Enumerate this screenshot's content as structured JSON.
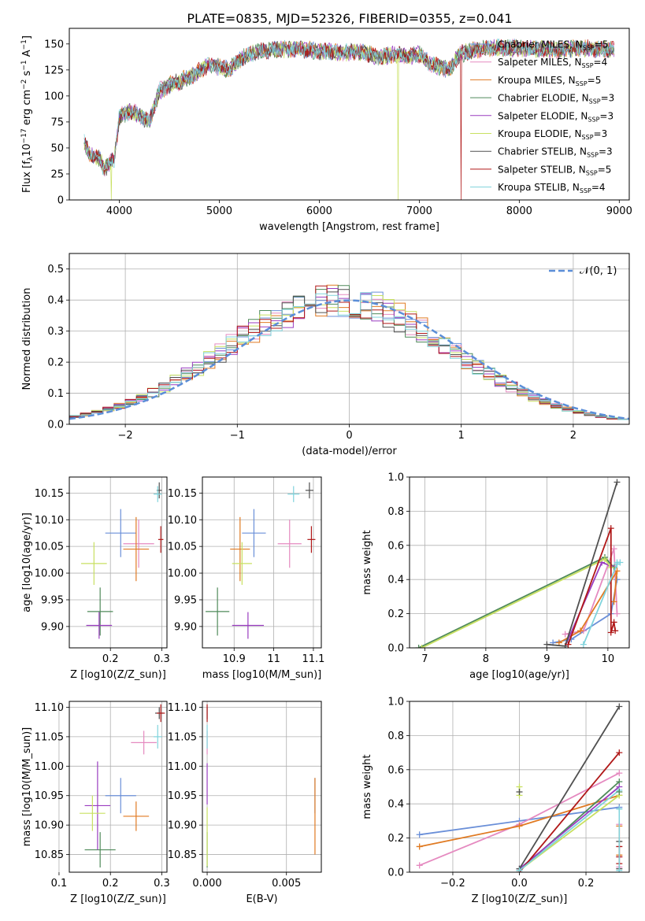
{
  "figure": {
    "title": "PLATE=0835, MJD=52326, FIBERID=0355, z=0.041"
  },
  "series": [
    {
      "name": "Chabrier MILES, N_SSP=5",
      "color": "#6a8fd8"
    },
    {
      "name": "Salpeter MILES, N_SSP=4",
      "color": "#e58ac0"
    },
    {
      "name": "Kroupa MILES, N_SSP=5",
      "color": "#e07a22"
    },
    {
      "name": "Chabrier ELODIE, N_SSP=3",
      "color": "#4f8a5a"
    },
    {
      "name": "Salpeter ELODIE, N_SSP=3",
      "color": "#9a3dc0"
    },
    {
      "name": "Kroupa ELODIE, N_SSP=3",
      "color": "#c8e060"
    },
    {
      "name": "Chabrier STELIB, N_SSP=3",
      "color": "#505050"
    },
    {
      "name": "Salpeter STELIB, N_SSP=5",
      "color": "#b01818"
    },
    {
      "name": "Kroupa STELIB, N_SSP=4",
      "color": "#7fd3dc"
    }
  ],
  "chart_data": [
    {
      "id": "spectrum",
      "type": "line",
      "xlabel": "wavelength [Angstrom, rest frame]",
      "ylabel": "Flux [f_λ 10^-17 erg cm^-2 s^-1 A^-1]",
      "xlim": [
        3500,
        9100
      ],
      "ylim": [
        0,
        165
      ],
      "xticks": [
        4000,
        5000,
        6000,
        7000,
        8000,
        9000
      ],
      "yticks": [
        0,
        25,
        50,
        75,
        100,
        125,
        150
      ],
      "legend": "top-right",
      "grid": false,
      "spectrum_envelope": {
        "x": [
          3650,
          3700,
          3800,
          3850,
          3900,
          3950,
          4000,
          4100,
          4200,
          4300,
          4400,
          4500,
          4700,
          4900,
          5000,
          5100,
          5200,
          5300,
          5400,
          5600,
          5800,
          6000,
          6200,
          6400,
          6600,
          6800,
          6900,
          7000,
          7100,
          7200,
          7300,
          7400,
          7600,
          7800,
          8000,
          8200,
          8400,
          8600,
          8800,
          8950
        ],
        "y": [
          55,
          45,
          40,
          30,
          35,
          40,
          80,
          85,
          82,
          75,
          105,
          110,
          118,
          130,
          128,
          125,
          135,
          140,
          143,
          145,
          145,
          143,
          142,
          142,
          138,
          140,
          138,
          140,
          132,
          128,
          124,
          140,
          145,
          146,
          146,
          145,
          144,
          146,
          145,
          144
        ]
      },
      "drops": [
        {
          "series": "Kroupa ELODIE, N_SSP=3",
          "x": 3920
        },
        {
          "series": "Kroupa ELODIE, N_SSP=3",
          "x": 6790
        },
        {
          "series": "Salpeter STELIB, N_SSP=5",
          "x": 7420
        }
      ]
    },
    {
      "id": "residuals",
      "type": "histogram",
      "xlabel": "(data-model)/error",
      "ylabel": "Normed distribution",
      "xlim": [
        -2.5,
        2.5
      ],
      "ylim": [
        0,
        0.55
      ],
      "xticks": [
        -2,
        -1,
        0,
        1,
        2
      ],
      "yticks": [
        0.0,
        0.1,
        0.2,
        0.3,
        0.4,
        0.5
      ],
      "grid": true,
      "legend": "top-right",
      "bin_width": 0.1,
      "reference": {
        "name": "N(0,1)",
        "type": "gaussian",
        "mu": 0,
        "sigma": 1,
        "color": "#5b8ed8"
      }
    },
    {
      "id": "age_vs_Z",
      "type": "scatter",
      "xlabel": "Z [log10(Z/Z_sun)]",
      "ylabel": "age [log10(age/yr)]",
      "xlim": [
        0.12,
        0.31
      ],
      "ylim": [
        9.86,
        10.18
      ],
      "xticks": [
        0.2,
        0.3
      ],
      "yticks": [
        9.9,
        9.95,
        10.0,
        10.05,
        10.1,
        10.15
      ],
      "grid": true,
      "points": [
        {
          "series": 0,
          "x": 0.22,
          "y": 10.075,
          "xerr": 0.03,
          "yerr": 0.045
        },
        {
          "series": 1,
          "x": 0.255,
          "y": 10.055,
          "xerr": 0.03,
          "yerr": 0.045
        },
        {
          "series": 2,
          "x": 0.25,
          "y": 10.045,
          "xerr": 0.025,
          "yerr": 0.06
        },
        {
          "series": 3,
          "x": 0.18,
          "y": 9.928,
          "xerr": 0.025,
          "yerr": 0.045
        },
        {
          "series": 4,
          "x": 0.178,
          "y": 9.902,
          "xerr": 0.025,
          "yerr": 0.025
        },
        {
          "series": 5,
          "x": 0.168,
          "y": 10.018,
          "xerr": 0.025,
          "yerr": 0.04
        },
        {
          "series": 6,
          "x": 0.295,
          "y": 10.155,
          "xerr": 0.005,
          "yerr": 0.015
        },
        {
          "series": 7,
          "x": 0.298,
          "y": 10.063,
          "xerr": 0.005,
          "yerr": 0.025
        },
        {
          "series": 8,
          "x": 0.292,
          "y": 10.148,
          "xerr": 0.008,
          "yerr": 0.015
        }
      ]
    },
    {
      "id": "age_vs_mass",
      "type": "scatter",
      "xlabel": "mass [log10(M/M_sun)]",
      "xlim": [
        10.82,
        11.12
      ],
      "ylim": [
        9.86,
        10.18
      ],
      "xticks": [
        10.9,
        11.0,
        11.1
      ],
      "yticks": [
        9.9,
        9.95,
        10.0,
        10.05,
        10.1,
        10.15
      ],
      "grid": true,
      "points": [
        {
          "series": 0,
          "x": 10.95,
          "y": 10.075,
          "xerr": 0.03,
          "yerr": 0.045
        },
        {
          "series": 1,
          "x": 11.04,
          "y": 10.055,
          "xerr": 0.03,
          "yerr": 0.045
        },
        {
          "series": 2,
          "x": 10.915,
          "y": 10.045,
          "xerr": 0.025,
          "yerr": 0.06
        },
        {
          "series": 3,
          "x": 10.858,
          "y": 9.928,
          "xerr": 0.03,
          "yerr": 0.045
        },
        {
          "series": 4,
          "x": 10.935,
          "y": 9.902,
          "xerr": 0.04,
          "yerr": 0.025
        },
        {
          "series": 5,
          "x": 10.92,
          "y": 10.018,
          "xerr": 0.025,
          "yerr": 0.04
        },
        {
          "series": 6,
          "x": 11.09,
          "y": 10.155,
          "xerr": 0.01,
          "yerr": 0.015
        },
        {
          "series": 7,
          "x": 11.095,
          "y": 10.063,
          "xerr": 0.01,
          "yerr": 0.025
        },
        {
          "series": 8,
          "x": 11.05,
          "y": 10.148,
          "xerr": 0.015,
          "yerr": 0.015
        }
      ]
    },
    {
      "id": "weight_vs_age",
      "type": "line",
      "xlabel": "age [log10(age/yr)]",
      "ylabel": "mass weight",
      "xlim": [
        6.75,
        10.35
      ],
      "ylim": [
        0,
        1.0
      ],
      "xticks": [
        7,
        8,
        9,
        10
      ],
      "yticks": [
        0.0,
        0.2,
        0.4,
        0.6,
        0.8,
        1.0
      ],
      "grid": true,
      "lines": [
        {
          "series": 0,
          "x": [
            9.1,
            9.4,
            10.05,
            10.15
          ],
          "y": [
            0.03,
            0.05,
            0.2,
            0.4
          ]
        },
        {
          "series": 1,
          "x": [
            9.3,
            9.6,
            10.1,
            10.15
          ],
          "y": [
            0.08,
            0.1,
            0.58,
            0.2
          ]
        },
        {
          "series": 2,
          "x": [
            9.2,
            9.55,
            10.15,
            10.1
          ],
          "y": [
            0.03,
            0.1,
            0.45,
            0.27
          ]
        },
        {
          "series": 3,
          "x": [
            6.9,
            9.95,
            10.1
          ],
          "y": [
            0.0,
            0.53,
            0.47
          ]
        },
        {
          "series": 4,
          "x": [
            9.3,
            9.9,
            10.05
          ],
          "y": [
            0.01,
            0.5,
            0.48
          ]
        },
        {
          "series": 5,
          "x": [
            6.95,
            9.95,
            10.05
          ],
          "y": [
            0.0,
            0.52,
            0.47
          ]
        },
        {
          "series": 6,
          "x": [
            9.0,
            9.3,
            10.15
          ],
          "y": [
            0.02,
            0.01,
            0.97
          ]
        },
        {
          "series": 7,
          "x": [
            9.35,
            10.05,
            10.05,
            10.1,
            10.12
          ],
          "y": [
            0.02,
            0.7,
            0.09,
            0.15,
            0.1
          ]
        },
        {
          "series": 8,
          "x": [
            9.6,
            10.15,
            10.15,
            10.2
          ],
          "y": [
            0.02,
            0.49,
            0.5,
            0.5
          ]
        }
      ]
    },
    {
      "id": "mass_vs_Z",
      "type": "scatter",
      "xlabel": "Z [log10(Z/Z_sun)]",
      "ylabel": "mass [log10(M/M_sun)]",
      "xlim": [
        0.12,
        0.31
      ],
      "ylim": [
        10.82,
        11.11
      ],
      "xticks": [
        0.1,
        0.2,
        0.3
      ],
      "yticks": [
        10.85,
        10.9,
        10.95,
        11.0,
        11.05,
        11.1
      ],
      "grid": true,
      "points": [
        {
          "series": 0,
          "x": 0.22,
          "y": 10.95,
          "xerr": 0.03,
          "yerr": 0.03
        },
        {
          "series": 1,
          "x": 0.265,
          "y": 11.04,
          "xerr": 0.025,
          "yerr": 0.02
        },
        {
          "series": 2,
          "x": 0.25,
          "y": 10.915,
          "xerr": 0.025,
          "yerr": 0.025
        },
        {
          "series": 3,
          "x": 0.18,
          "y": 10.858,
          "xerr": 0.03,
          "yerr": 0.03
        },
        {
          "series": 4,
          "x": 0.175,
          "y": 10.933,
          "xerr": 0.025,
          "yerr": 0.075
        },
        {
          "series": 5,
          "x": 0.165,
          "y": 10.92,
          "xerr": 0.025,
          "yerr": 0.03
        },
        {
          "series": 6,
          "x": 0.295,
          "y": 11.09,
          "xerr": 0.008,
          "yerr": 0.01
        },
        {
          "series": 7,
          "x": 0.298,
          "y": 11.09,
          "xerr": 0.008,
          "yerr": 0.015
        },
        {
          "series": 8,
          "x": 0.292,
          "y": 11.05,
          "xerr": 0.008,
          "yerr": 0.02
        }
      ]
    },
    {
      "id": "mass_vs_ebv",
      "type": "scatter",
      "xlabel": "E(B-V)",
      "xlim": [
        -0.0003,
        0.0072
      ],
      "ylim": [
        10.82,
        11.11
      ],
      "xticks": [
        0.0,
        0.005
      ],
      "yticks": [
        10.85,
        10.9,
        10.95,
        11.0,
        11.05,
        11.1
      ],
      "grid": true,
      "points": [
        {
          "series": 0,
          "x": 0.0068,
          "y": 10.95,
          "xerr": 0,
          "yerr": 0.03
        },
        {
          "series": 1,
          "x": 0.0,
          "y": 11.04,
          "xerr": 0,
          "yerr": 0.02
        },
        {
          "series": 2,
          "x": 0.0068,
          "y": 10.915,
          "xerr": 0,
          "yerr": 0.065
        },
        {
          "series": 3,
          "x": 0.0,
          "y": 10.858,
          "xerr": 0,
          "yerr": 0.03
        },
        {
          "series": 4,
          "x": 0.0,
          "y": 10.97,
          "xerr": 0,
          "yerr": 0.035
        },
        {
          "series": 5,
          "x": 0.0,
          "y": 10.88,
          "xerr": 0,
          "yerr": 0.05
        },
        {
          "series": 6,
          "x": 0.0,
          "y": 11.09,
          "xerr": 0,
          "yerr": 0.01
        },
        {
          "series": 7,
          "x": 0.0,
          "y": 11.09,
          "xerr": 0,
          "yerr": 0.015
        },
        {
          "series": 8,
          "x": 0.0,
          "y": 11.05,
          "xerr": 0,
          "yerr": 0.02
        }
      ]
    },
    {
      "id": "weight_vs_Z",
      "type": "line",
      "xlabel": "Z [log10(Z/Z_sun)]",
      "ylabel": "mass weight",
      "xlim": [
        -0.33,
        0.33
      ],
      "ylim": [
        0,
        1.0
      ],
      "xticks": [
        -0.2,
        0.0,
        0.2
      ],
      "yticks": [
        0.0,
        0.2,
        0.4,
        0.6,
        0.8,
        1.0
      ],
      "grid": true,
      "lines": [
        {
          "series": 0,
          "x": [
            -0.3,
            0.0,
            0.3
          ],
          "y": [
            0.22,
            0.3,
            0.38
          ]
        },
        {
          "series": 1,
          "x": [
            -0.3,
            0.0,
            0.3
          ],
          "y": [
            0.04,
            0.28,
            0.58
          ]
        },
        {
          "series": 2,
          "x": [
            -0.3,
            0.0,
            0.3
          ],
          "y": [
            0.15,
            0.27,
            0.45
          ]
        },
        {
          "series": 3,
          "x": [
            0.0,
            0.3
          ],
          "y": [
            0.01,
            0.53
          ]
        },
        {
          "series": 4,
          "x": [
            0.0,
            0.3
          ],
          "y": [
            0.02,
            0.5
          ]
        },
        {
          "series": 5,
          "x": [
            0.0,
            0.3
          ],
          "y": [
            0.01,
            0.45
          ]
        },
        {
          "series": 6,
          "x": [
            0.0,
            0.3
          ],
          "y": [
            0.02,
            0.97
          ]
        },
        {
          "series": 7,
          "x": [
            0.0,
            0.3
          ],
          "y": [
            0.0,
            0.7
          ]
        },
        {
          "series": 8,
          "x": [
            0.0,
            0.3
          ],
          "y": [
            0.01,
            0.48
          ]
        }
      ],
      "vertical_markers": [
        {
          "series": 5,
          "x": 0.0,
          "y": [
            0.45,
            0.5
          ]
        },
        {
          "series": 6,
          "x": 0.0,
          "y": [
            0.47
          ]
        },
        {
          "series": 1,
          "x": 0.3,
          "y": [
            0.03,
            0.28,
            0.09
          ]
        },
        {
          "series": 2,
          "x": 0.3,
          "y": [
            0.27,
            0.1
          ]
        },
        {
          "series": 3,
          "x": 0.3,
          "y": [
            0.47
          ]
        },
        {
          "series": 6,
          "x": 0.3,
          "y": [
            0.02,
            0.18
          ]
        },
        {
          "series": 7,
          "x": 0.3,
          "y": [
            0.09,
            0.15,
            0.05
          ]
        },
        {
          "series": 8,
          "x": 0.3,
          "y": [
            0.37,
            0.01
          ]
        }
      ]
    }
  ]
}
